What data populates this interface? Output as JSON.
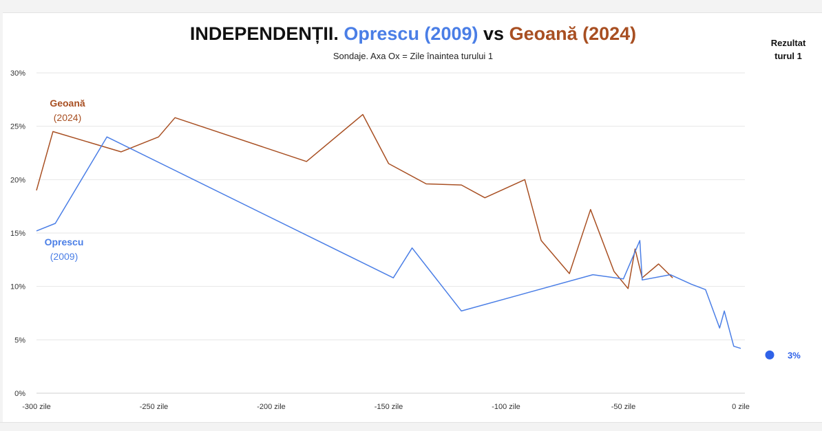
{
  "title": {
    "part1": "INDEPENDENȚII.",
    "part2": "Oprescu (2009)",
    "part3": "vs",
    "part4": "Geoană (2024)"
  },
  "subtitle": "Sondaje. Axa Ox = Zile înaintea turului 1",
  "result_label": [
    "Rezultat",
    "turul 1"
  ],
  "colors": {
    "oprescu": "#4a7ee6",
    "geoana": "#a84f22",
    "grid": "#e6e6e6"
  },
  "chart_data": {
    "type": "line",
    "title": "INDEPENDENȚII. Oprescu (2009) vs Geoană (2024)",
    "subtitle": "Sondaje. Axa Ox = Zile înaintea turului 1",
    "xlim": [
      -300,
      0
    ],
    "ylim": [
      0,
      30
    ],
    "x_ticks": [
      {
        "value": -300,
        "label": "-300 zile"
      },
      {
        "value": -250,
        "label": "-250 zile"
      },
      {
        "value": -200,
        "label": "-200 zile"
      },
      {
        "value": -150,
        "label": "-150 zile"
      },
      {
        "value": -100,
        "label": "-100 zile"
      },
      {
        "value": -50,
        "label": "-50 zile"
      },
      {
        "value": 0,
        "label": "0 zile"
      }
    ],
    "y_ticks": [
      {
        "value": 0,
        "label": "0%"
      },
      {
        "value": 5,
        "label": "5%"
      },
      {
        "value": 10,
        "label": "10%"
      },
      {
        "value": 15,
        "label": "15%"
      },
      {
        "value": 20,
        "label": "20%"
      },
      {
        "value": 25,
        "label": "25%"
      },
      {
        "value": 30,
        "label": "30%"
      }
    ],
    "grid": true,
    "series": [
      {
        "name": "Geoană (2024)",
        "label_lines": [
          "Geoană",
          "(2024)"
        ],
        "color": "#a84f22",
        "points": [
          [
            -300,
            19.0
          ],
          [
            -293,
            24.5
          ],
          [
            -264,
            22.6
          ],
          [
            -248,
            24.0
          ],
          [
            -241,
            25.8
          ],
          [
            -185,
            21.7
          ],
          [
            -161,
            26.1
          ],
          [
            -150,
            21.5
          ],
          [
            -134,
            19.6
          ],
          [
            -119,
            19.5
          ],
          [
            -109,
            18.3
          ],
          [
            -92,
            20.0
          ],
          [
            -85,
            14.3
          ],
          [
            -73,
            11.2
          ],
          [
            -64,
            17.2
          ],
          [
            -54,
            11.4
          ],
          [
            -48,
            9.8
          ],
          [
            -45,
            13.5
          ],
          [
            -42,
            10.8
          ],
          [
            -35,
            12.1
          ],
          [
            -29,
            10.8
          ]
        ]
      },
      {
        "name": "Oprescu (2009)",
        "label_lines": [
          "Oprescu",
          "(2009)"
        ],
        "color": "#4a7ee6",
        "points": [
          [
            -300,
            15.2
          ],
          [
            -292,
            15.9
          ],
          [
            -270,
            24.0
          ],
          [
            -148,
            10.8
          ],
          [
            -140,
            13.6
          ],
          [
            -119,
            7.7
          ],
          [
            -63,
            11.1
          ],
          [
            -50,
            10.7
          ],
          [
            -43,
            14.3
          ],
          [
            -42,
            10.6
          ],
          [
            -30,
            11.1
          ],
          [
            -21,
            10.2
          ],
          [
            -15,
            9.7
          ],
          [
            -9,
            6.1
          ],
          [
            -7,
            7.7
          ],
          [
            -3,
            4.4
          ],
          [
            0,
            4.2
          ]
        ]
      }
    ],
    "result": {
      "series": "Oprescu (2009)",
      "value": 3,
      "label": "3%",
      "color": "#2f62e8"
    }
  }
}
